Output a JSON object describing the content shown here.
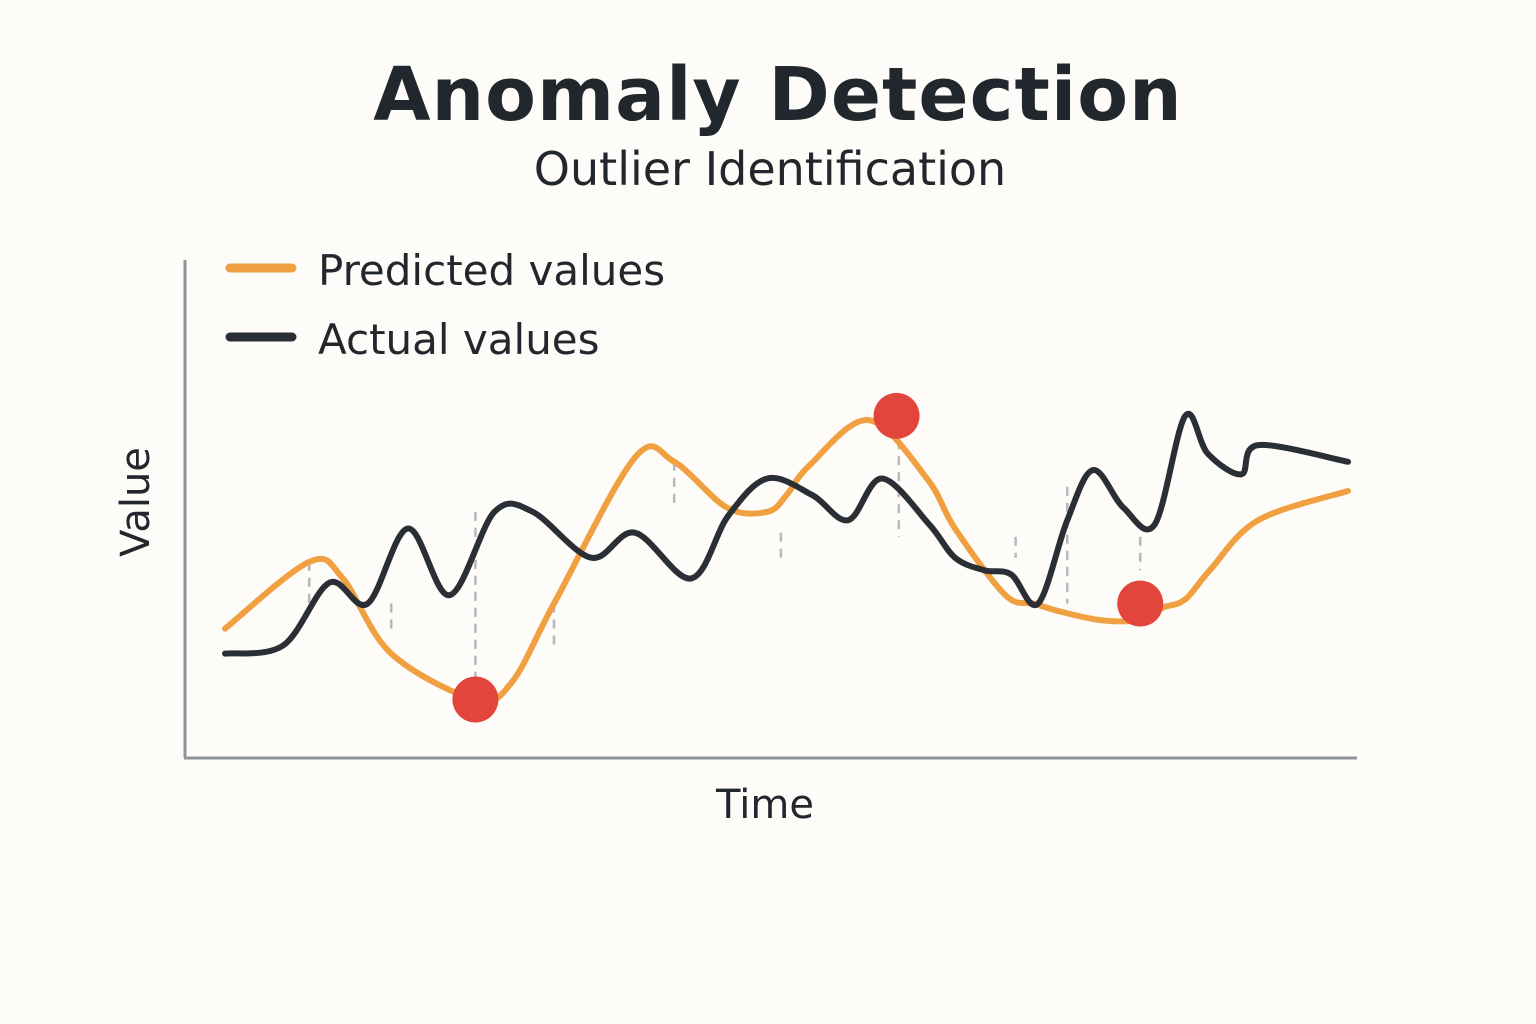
{
  "chart_data": {
    "type": "line",
    "title": "Anomaly Detection",
    "subtitle": "Outlier Identification",
    "xlabel": "Time",
    "ylabel": "Value",
    "grid": false,
    "axis_ticks": false,
    "legend_position": "top-left",
    "xlim": [
      0,
      100
    ],
    "ylim": [
      0,
      100
    ],
    "series": [
      {
        "name": "Predicted values",
        "color": "#f0a040",
        "x": [
          0,
          7.5,
          10.5,
          14.8,
          22.3,
          25.5,
          29.3,
          36.5,
          40.0,
          44.7,
          48.3,
          50.0,
          52.0,
          57.3,
          62.5,
          65.0,
          69.5,
          72.0,
          74.5,
          78.0,
          81.0,
          83.5,
          85.5,
          87.7,
          92.0,
          100.0
        ],
        "values": [
          26,
          42,
          38,
          20,
          9,
          13,
          32,
          67,
          66,
          55,
          54,
          58,
          65,
          76,
          62,
          50,
          34,
          32,
          30,
          28,
          28,
          31,
          33,
          40,
          52,
          59
        ]
      },
      {
        "name": "Actual values",
        "color": "#2a2e35",
        "x": [
          0,
          5.2,
          9.3,
          12.7,
          16.3,
          20.0,
          24.0,
          27.4,
          32.6,
          36.5,
          41.5,
          44.8,
          48.3,
          52.3,
          55.5,
          58.5,
          62.7,
          65.0,
          67.6,
          70.0,
          72.4,
          75.0,
          77.3,
          80.0,
          82.8,
          85.5,
          87.5,
          90.5,
          92.0,
          100.0
        ],
        "values": [
          20,
          22,
          37,
          32,
          50,
          34,
          54,
          54,
          43,
          49,
          38,
          53,
          62,
          58,
          52,
          62,
          51,
          43,
          40,
          39,
          32,
          52,
          64,
          55,
          51,
          77,
          68,
          63,
          70,
          66
        ]
      }
    ],
    "anomalies": [
      {
        "x": 22.3,
        "y": 9,
        "color": "#e2453c"
      },
      {
        "x": 59.8,
        "y": 77,
        "color": "#e2453c"
      },
      {
        "x": 81.5,
        "y": 32,
        "color": "#e2453c"
      }
    ],
    "deviation_marks": [
      {
        "x": 7.5,
        "y1": 42,
        "y2": 30
      },
      {
        "x": 14.8,
        "y1": 32,
        "y2": 25
      },
      {
        "x": 22.3,
        "y1": 54,
        "y2": 14
      },
      {
        "x": 29.3,
        "y1": 32,
        "y2": 21
      },
      {
        "x": 40.0,
        "y1": 66,
        "y2": 55
      },
      {
        "x": 49.5,
        "y1": 49,
        "y2": 42
      },
      {
        "x": 60.0,
        "y1": 75,
        "y2": 48
      },
      {
        "x": 70.4,
        "y1": 48,
        "y2": 43
      },
      {
        "x": 75.0,
        "y1": 60,
        "y2": 32
      },
      {
        "x": 81.5,
        "y1": 48,
        "y2": 40
      }
    ]
  }
}
